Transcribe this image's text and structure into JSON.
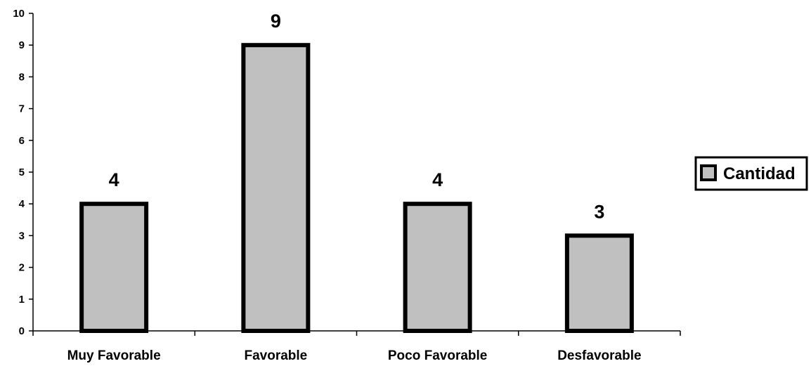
{
  "chart_data": {
    "type": "bar",
    "categories": [
      "Muy Favorable",
      "Favorable",
      "Poco Favorable",
      "Desfavorable"
    ],
    "series": [
      {
        "name": "Cantidad",
        "values": [
          4,
          9,
          4,
          3
        ],
        "color": "#c0c0c0",
        "border": "#000000"
      }
    ],
    "ylim": [
      0,
      10
    ],
    "yticks": [
      "0",
      "1",
      "2",
      "3",
      "4",
      "5",
      "6",
      "7",
      "8",
      "9",
      "10"
    ],
    "data_labels": [
      "4",
      "9",
      "4",
      "3"
    ],
    "grid": false,
    "legend": {
      "position": "right",
      "entries": [
        "Cantidad"
      ]
    }
  }
}
